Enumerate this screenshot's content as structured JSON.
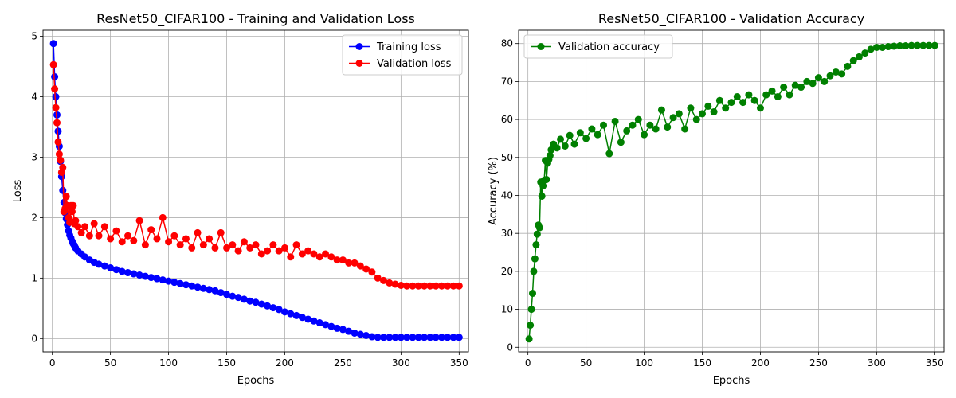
{
  "chart_data": [
    {
      "type": "line",
      "title": "ResNet50_CIFAR100 - Training and Validation Loss",
      "xlabel": "Epochs",
      "ylabel": "Loss",
      "xlim": [
        -8,
        358
      ],
      "ylim": [
        -0.22,
        5.1
      ],
      "xticks": [
        "0",
        "50",
        "100",
        "150",
        "200",
        "250",
        "300",
        "350"
      ],
      "yticks": [
        "0",
        "1",
        "2",
        "3",
        "4",
        "5"
      ],
      "grid": true,
      "legend": "upper-right",
      "series": [
        {
          "name": "Training loss",
          "color": "#0000ff",
          "x": [
            1,
            2,
            3,
            4,
            5,
            6,
            7,
            8,
            9,
            10,
            11,
            12,
            13,
            14,
            15,
            16,
            17,
            18,
            19,
            20,
            22,
            25,
            28,
            32,
            36,
            40,
            45,
            50,
            55,
            60,
            65,
            70,
            75,
            80,
            85,
            90,
            95,
            100,
            105,
            110,
            115,
            120,
            125,
            130,
            135,
            140,
            145,
            150,
            155,
            160,
            165,
            170,
            175,
            180,
            185,
            190,
            195,
            200,
            205,
            210,
            215,
            220,
            225,
            230,
            235,
            240,
            245,
            250,
            255,
            260,
            265,
            270,
            275,
            280,
            285,
            290,
            295,
            300,
            305,
            310,
            315,
            320,
            325,
            330,
            335,
            340,
            345,
            350
          ],
          "y": [
            4.88,
            4.33,
            4.0,
            3.7,
            3.43,
            3.18,
            2.93,
            2.68,
            2.45,
            2.25,
            2.08,
            1.98,
            1.88,
            1.78,
            1.71,
            1.66,
            1.61,
            1.57,
            1.54,
            1.5,
            1.45,
            1.4,
            1.35,
            1.3,
            1.26,
            1.23,
            1.2,
            1.17,
            1.14,
            1.11,
            1.09,
            1.07,
            1.05,
            1.03,
            1.01,
            0.99,
            0.97,
            0.95,
            0.93,
            0.91,
            0.89,
            0.87,
            0.85,
            0.83,
            0.81,
            0.79,
            0.76,
            0.73,
            0.7,
            0.68,
            0.65,
            0.62,
            0.6,
            0.57,
            0.54,
            0.51,
            0.48,
            0.44,
            0.41,
            0.38,
            0.35,
            0.32,
            0.29,
            0.26,
            0.23,
            0.2,
            0.17,
            0.15,
            0.12,
            0.09,
            0.07,
            0.05,
            0.03,
            0.02,
            0.02,
            0.02,
            0.02,
            0.02,
            0.02,
            0.02,
            0.02,
            0.02,
            0.02,
            0.02,
            0.02,
            0.02,
            0.02,
            0.02
          ]
        },
        {
          "name": "Validation loss",
          "color": "#ff0000",
          "x": [
            1,
            2,
            3,
            4,
            5,
            6,
            7,
            8,
            9,
            10,
            11,
            12,
            13,
            14,
            15,
            16,
            17,
            18,
            19,
            20,
            22,
            25,
            28,
            32,
            36,
            40,
            45,
            50,
            55,
            60,
            65,
            70,
            75,
            80,
            85,
            90,
            95,
            100,
            105,
            110,
            115,
            120,
            125,
            130,
            135,
            140,
            145,
            150,
            155,
            160,
            165,
            170,
            175,
            180,
            185,
            190,
            195,
            200,
            205,
            210,
            215,
            220,
            225,
            230,
            235,
            240,
            245,
            250,
            255,
            260,
            265,
            270,
            275,
            280,
            285,
            290,
            295,
            300,
            305,
            310,
            315,
            320,
            325,
            330,
            335,
            340,
            345,
            350
          ],
          "y": [
            4.53,
            4.13,
            3.82,
            3.57,
            3.25,
            3.05,
            2.95,
            2.75,
            2.83,
            2.1,
            2.15,
            2.35,
            2.2,
            2.0,
            1.92,
            2.2,
            2.1,
            2.2,
            1.9,
            1.95,
            1.85,
            1.75,
            1.85,
            1.7,
            1.9,
            1.7,
            1.85,
            1.65,
            1.78,
            1.6,
            1.7,
            1.62,
            1.95,
            1.55,
            1.8,
            1.65,
            2.0,
            1.6,
            1.7,
            1.55,
            1.65,
            1.5,
            1.75,
            1.55,
            1.65,
            1.5,
            1.75,
            1.5,
            1.55,
            1.45,
            1.6,
            1.5,
            1.55,
            1.4,
            1.45,
            1.55,
            1.45,
            1.5,
            1.35,
            1.55,
            1.4,
            1.45,
            1.4,
            1.35,
            1.4,
            1.35,
            1.3,
            1.3,
            1.25,
            1.25,
            1.2,
            1.15,
            1.1,
            1.0,
            0.96,
            0.92,
            0.9,
            0.88,
            0.87,
            0.87,
            0.87,
            0.87,
            0.87,
            0.87,
            0.87,
            0.87,
            0.87,
            0.87
          ]
        }
      ]
    },
    {
      "type": "line",
      "title": "ResNet50_CIFAR100 - Validation Accuracy",
      "xlabel": "Epochs",
      "ylabel": "Accuracy (%)",
      "xlim": [
        -8,
        358
      ],
      "ylim": [
        -1.2,
        83.5
      ],
      "xticks": [
        "0",
        "50",
        "100",
        "150",
        "200",
        "250",
        "300",
        "350"
      ],
      "yticks": [
        "0",
        "10",
        "20",
        "30",
        "40",
        "50",
        "60",
        "70",
        "80"
      ],
      "grid": true,
      "legend": "upper-left",
      "series": [
        {
          "name": "Validation accuracy",
          "color": "#008000",
          "x": [
            1,
            2,
            3,
            4,
            5,
            6,
            7,
            8,
            9,
            10,
            11,
            12,
            13,
            14,
            15,
            16,
            17,
            18,
            19,
            20,
            22,
            25,
            28,
            32,
            36,
            40,
            45,
            50,
            55,
            60,
            65,
            70,
            75,
            80,
            85,
            90,
            95,
            100,
            105,
            110,
            115,
            120,
            125,
            130,
            135,
            140,
            145,
            150,
            155,
            160,
            165,
            170,
            175,
            180,
            185,
            190,
            195,
            200,
            205,
            210,
            215,
            220,
            225,
            230,
            235,
            240,
            245,
            250,
            255,
            260,
            265,
            270,
            275,
            280,
            285,
            290,
            295,
            300,
            305,
            310,
            315,
            320,
            325,
            330,
            335,
            340,
            345,
            350
          ],
          "y": [
            2.2,
            5.8,
            10.0,
            14.2,
            20.0,
            23.3,
            27.0,
            29.8,
            32.2,
            31.5,
            43.5,
            39.8,
            42.5,
            44.0,
            49.2,
            44.2,
            48.5,
            49.5,
            50.5,
            52.0,
            53.5,
            52.5,
            54.8,
            53.0,
            55.8,
            53.5,
            56.5,
            55.0,
            57.5,
            56.0,
            58.5,
            51.0,
            59.5,
            54.0,
            57.0,
            58.5,
            60.0,
            56.0,
            58.5,
            57.5,
            62.5,
            58.0,
            60.5,
            61.5,
            57.5,
            63.0,
            60.0,
            61.5,
            63.5,
            62.0,
            65.0,
            63.0,
            64.5,
            66.0,
            64.5,
            66.5,
            65.0,
            63.0,
            66.5,
            67.5,
            66.0,
            68.5,
            66.5,
            69.0,
            68.5,
            70.0,
            69.5,
            71.0,
            70.0,
            71.5,
            72.5,
            72.0,
            74.0,
            75.5,
            76.5,
            77.5,
            78.5,
            79.0,
            79.0,
            79.2,
            79.3,
            79.4,
            79.4,
            79.5,
            79.5,
            79.5,
            79.5,
            79.5
          ]
        }
      ]
    }
  ]
}
